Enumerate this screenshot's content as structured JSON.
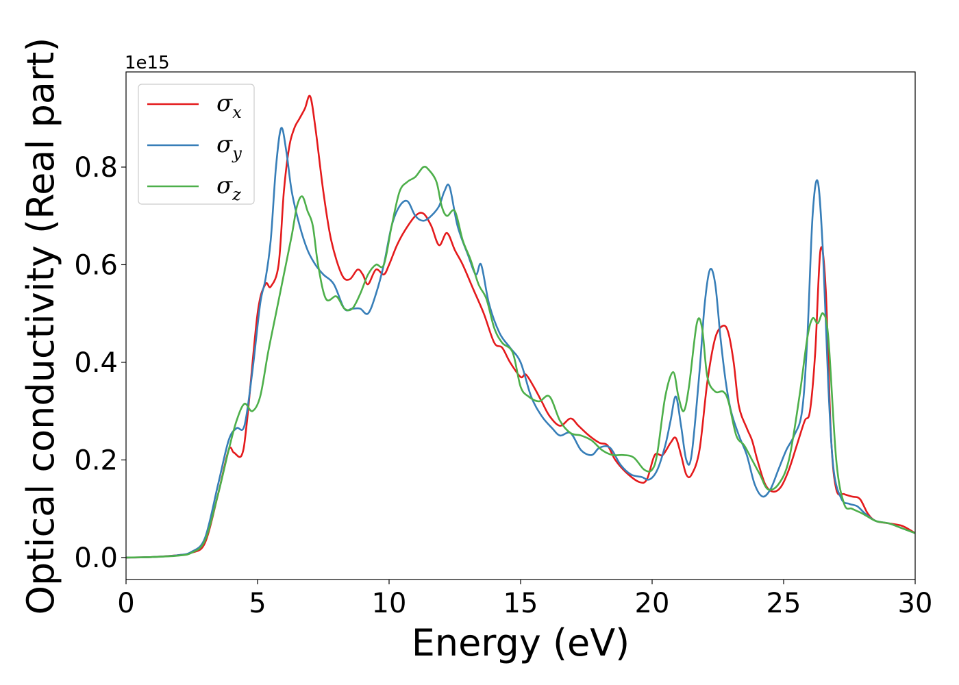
{
  "chart_data": {
    "type": "line",
    "title": "",
    "xlabel": "Energy (eV)",
    "ylabel": "Optical conductivity (Real part)",
    "y_offset_label": "1e15",
    "xlim": [
      0,
      30
    ],
    "ylim": [
      -0.045,
      0.995
    ],
    "xticks": [
      0,
      5,
      10,
      15,
      20,
      25,
      30
    ],
    "xtick_labels": [
      "0",
      "5",
      "10",
      "15",
      "20",
      "25",
      "30"
    ],
    "yticks": [
      0.0,
      0.2,
      0.4,
      0.6,
      0.8
    ],
    "ytick_labels": [
      "0.0",
      "0.2",
      "0.4",
      "0.6",
      "0.8"
    ],
    "grid": false,
    "legend_position": "top-left",
    "series": [
      {
        "name": "σx",
        "legend_base": "σ",
        "legend_sub": "x",
        "color": "#e41a1c",
        "x": [
          0,
          1,
          2,
          2.5,
          3,
          3.5,
          3.9,
          4.1,
          4.4,
          4.6,
          5,
          5.3,
          5.5,
          5.8,
          6,
          6.2,
          6.4,
          6.6,
          6.8,
          7,
          7.2,
          7.5,
          7.8,
          8.2,
          8.5,
          8.8,
          9,
          9.2,
          9.5,
          9.8,
          10,
          10.3,
          10.6,
          11,
          11.3,
          11.6,
          11.9,
          12.2,
          12.5,
          12.8,
          13.2,
          13.6,
          14,
          14.3,
          14.6,
          15,
          15.2,
          15.5,
          15.8,
          16.1,
          16.5,
          16.9,
          17.2,
          17.6,
          18,
          18.3,
          18.6,
          19,
          19.5,
          19.8,
          20.1,
          20.4,
          20.7,
          20.9,
          21.1,
          21.3,
          21.5,
          21.8,
          22.1,
          22.4,
          22.7,
          22.9,
          23.1,
          23.3,
          23.6,
          23.8,
          24,
          24.3,
          24.6,
          24.9,
          25.2,
          25.5,
          25.8,
          26,
          26.2,
          26.4,
          26.6,
          26.8,
          27,
          27.3,
          27.6,
          27.9,
          28.2,
          28.5,
          29,
          29.5,
          30
        ],
        "y": [
          0,
          0.001,
          0.005,
          0.01,
          0.03,
          0.13,
          0.22,
          0.215,
          0.21,
          0.28,
          0.5,
          0.56,
          0.555,
          0.6,
          0.75,
          0.84,
          0.88,
          0.9,
          0.92,
          0.945,
          0.88,
          0.75,
          0.65,
          0.58,
          0.57,
          0.59,
          0.58,
          0.56,
          0.59,
          0.58,
          0.6,
          0.64,
          0.67,
          0.7,
          0.705,
          0.68,
          0.64,
          0.665,
          0.63,
          0.6,
          0.55,
          0.5,
          0.44,
          0.43,
          0.4,
          0.37,
          0.375,
          0.35,
          0.32,
          0.29,
          0.27,
          0.285,
          0.27,
          0.25,
          0.235,
          0.23,
          0.2,
          0.175,
          0.155,
          0.16,
          0.21,
          0.21,
          0.235,
          0.245,
          0.21,
          0.17,
          0.17,
          0.22,
          0.36,
          0.45,
          0.475,
          0.46,
          0.4,
          0.31,
          0.265,
          0.24,
          0.2,
          0.15,
          0.135,
          0.145,
          0.18,
          0.23,
          0.28,
          0.3,
          0.42,
          0.63,
          0.55,
          0.25,
          0.14,
          0.13,
          0.125,
          0.12,
          0.09,
          0.075,
          0.07,
          0.065,
          0.05
        ]
      },
      {
        "name": "σy",
        "legend_base": "σ",
        "legend_sub": "y",
        "color": "#377eb8",
        "x": [
          0,
          1,
          2,
          2.5,
          3,
          3.5,
          3.9,
          4.2,
          4.5,
          4.8,
          5.1,
          5.3,
          5.5,
          5.7,
          5.9,
          6.1,
          6.3,
          6.6,
          6.9,
          7.2,
          7.5,
          7.9,
          8.3,
          8.6,
          8.9,
          9.2,
          9.5,
          9.8,
          10.1,
          10.4,
          10.7,
          11,
          11.3,
          11.6,
          11.9,
          12.1,
          12.3,
          12.6,
          13,
          13.3,
          13.5,
          13.8,
          14.2,
          14.6,
          15,
          15.4,
          15.8,
          16.2,
          16.5,
          16.9,
          17.3,
          17.7,
          18,
          18.4,
          18.8,
          19.2,
          19.6,
          19.9,
          20.2,
          20.5,
          20.7,
          20.9,
          21.1,
          21.3,
          21.5,
          21.8,
          22,
          22.2,
          22.4,
          22.6,
          22.8,
          23,
          23.3,
          23.6,
          23.9,
          24.2,
          24.5,
          24.8,
          25.1,
          25.4,
          25.7,
          25.9,
          26.1,
          26.3,
          26.5,
          26.7,
          26.9,
          27.2,
          27.5,
          27.8,
          28.1,
          28.5,
          29,
          29.5,
          30
        ],
        "y": [
          0,
          0.001,
          0.005,
          0.012,
          0.04,
          0.15,
          0.24,
          0.265,
          0.27,
          0.38,
          0.52,
          0.57,
          0.65,
          0.8,
          0.88,
          0.83,
          0.75,
          0.68,
          0.63,
          0.6,
          0.58,
          0.56,
          0.51,
          0.51,
          0.51,
          0.5,
          0.54,
          0.6,
          0.68,
          0.72,
          0.73,
          0.7,
          0.69,
          0.7,
          0.72,
          0.75,
          0.76,
          0.68,
          0.62,
          0.58,
          0.6,
          0.52,
          0.46,
          0.43,
          0.4,
          0.33,
          0.29,
          0.265,
          0.25,
          0.255,
          0.22,
          0.21,
          0.225,
          0.225,
          0.19,
          0.17,
          0.165,
          0.16,
          0.18,
          0.23,
          0.28,
          0.33,
          0.27,
          0.2,
          0.21,
          0.38,
          0.52,
          0.59,
          0.56,
          0.45,
          0.36,
          0.3,
          0.25,
          0.21,
          0.15,
          0.125,
          0.14,
          0.18,
          0.22,
          0.25,
          0.3,
          0.45,
          0.7,
          0.77,
          0.62,
          0.35,
          0.18,
          0.12,
          0.11,
          0.105,
          0.09,
          0.075,
          0.07,
          0.06,
          0.05
        ]
      },
      {
        "name": "σz",
        "legend_base": "σ",
        "legend_sub": "z",
        "color": "#4daf4a",
        "x": [
          0,
          1,
          2,
          2.5,
          3,
          3.5,
          3.9,
          4.2,
          4.5,
          4.8,
          5.1,
          5.4,
          5.7,
          6,
          6.3,
          6.5,
          6.7,
          6.9,
          7.1,
          7.3,
          7.6,
          8,
          8.3,
          8.6,
          8.9,
          9.2,
          9.5,
          9.8,
          10.1,
          10.4,
          10.7,
          11,
          11.3,
          11.5,
          11.8,
          12,
          12.2,
          12.5,
          12.8,
          13.1,
          13.4,
          13.7,
          14,
          14.3,
          14.7,
          15,
          15.3,
          15.7,
          16.1,
          16.5,
          16.9,
          17.3,
          17.7,
          18.1,
          18.5,
          18.9,
          19.3,
          19.7,
          20,
          20.2,
          20.5,
          20.8,
          21,
          21.2,
          21.4,
          21.7,
          21.9,
          22.1,
          22.4,
          22.7,
          22.9,
          23.2,
          23.5,
          23.8,
          24.1,
          24.4,
          24.8,
          25.2,
          25.6,
          25.9,
          26.1,
          26.3,
          26.5,
          26.7,
          27,
          27.3,
          27.6,
          28,
          28.5,
          29,
          29.5,
          30
        ],
        "y": [
          0,
          0.001,
          0.004,
          0.01,
          0.035,
          0.13,
          0.22,
          0.28,
          0.315,
          0.3,
          0.33,
          0.42,
          0.5,
          0.58,
          0.66,
          0.72,
          0.74,
          0.71,
          0.68,
          0.6,
          0.53,
          0.535,
          0.51,
          0.51,
          0.54,
          0.58,
          0.6,
          0.6,
          0.68,
          0.75,
          0.77,
          0.78,
          0.8,
          0.795,
          0.77,
          0.72,
          0.7,
          0.71,
          0.65,
          0.61,
          0.56,
          0.53,
          0.47,
          0.44,
          0.42,
          0.35,
          0.33,
          0.32,
          0.33,
          0.28,
          0.255,
          0.25,
          0.24,
          0.22,
          0.21,
          0.21,
          0.205,
          0.18,
          0.18,
          0.215,
          0.33,
          0.38,
          0.33,
          0.3,
          0.35,
          0.48,
          0.47,
          0.37,
          0.34,
          0.34,
          0.32,
          0.25,
          0.23,
          0.2,
          0.17,
          0.14,
          0.15,
          0.2,
          0.33,
          0.45,
          0.49,
          0.48,
          0.5,
          0.45,
          0.2,
          0.11,
          0.1,
          0.09,
          0.075,
          0.07,
          0.06,
          0.05
        ]
      }
    ]
  }
}
